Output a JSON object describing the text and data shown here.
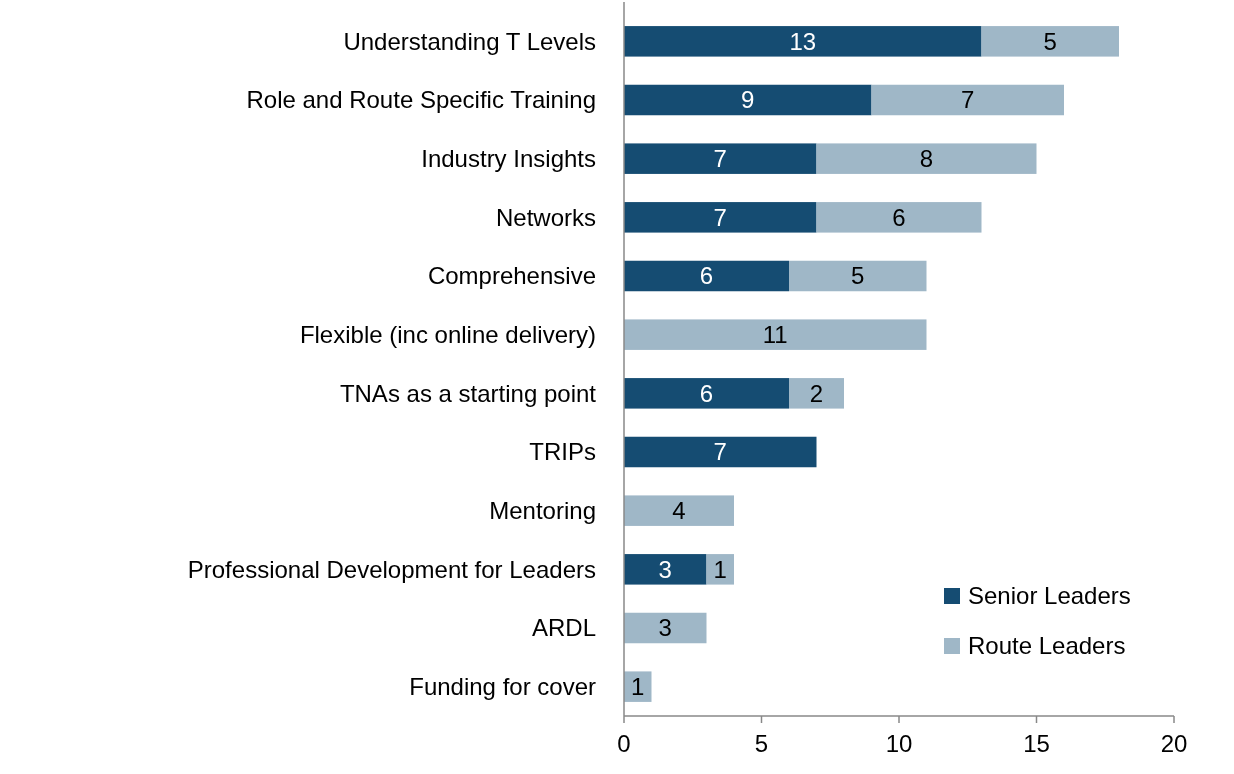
{
  "chart_data": {
    "type": "bar",
    "orientation": "horizontal",
    "stacked": true,
    "data_labels": true,
    "legend": "bottom right",
    "grid": false,
    "categories": [
      "Understanding T Levels",
      "Role and Route Specific Training",
      "Industry Insights",
      "Networks",
      "Comprehensive",
      "Flexible (inc online delivery)",
      "TNAs as a starting point",
      "TRIPs",
      "Mentoring",
      "Professional Development for Leaders",
      "ARDL",
      "Funding for cover"
    ],
    "series": [
      {
        "name": "Senior Leaders",
        "color": "#154c72",
        "values": [
          13,
          9,
          7,
          7,
          6,
          null,
          6,
          7,
          null,
          3,
          null,
          null
        ]
      },
      {
        "name": "Route Leaders",
        "color": "#9fb7c7",
        "values": [
          5,
          7,
          8,
          6,
          5,
          11,
          2,
          null,
          4,
          1,
          3,
          1
        ]
      }
    ],
    "xlim": [
      0,
      20
    ],
    "xticks": [
      0,
      5,
      10,
      15,
      20
    ]
  }
}
